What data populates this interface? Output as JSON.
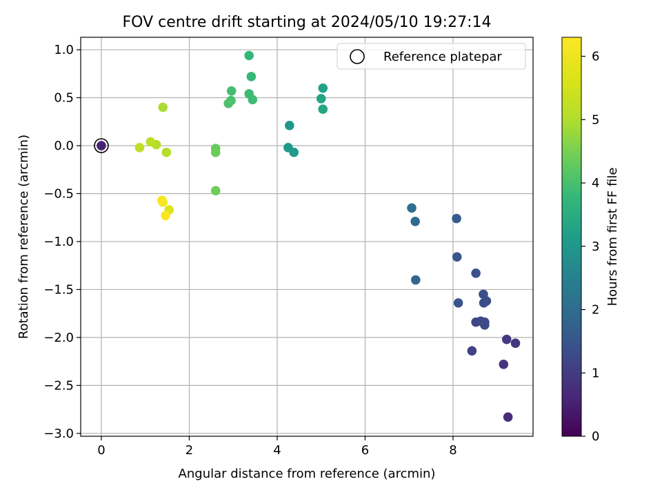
{
  "chart_data": {
    "type": "scatter",
    "title": "FOV centre drift starting at 2024/05/10 19:27:14",
    "xlabel": "Angular distance from reference (arcmin)",
    "ylabel": "Rotation from reference (arcmin)",
    "xlim": [
      -0.47,
      9.82
    ],
    "ylim": [
      -3.03,
      1.13
    ],
    "xticks": [
      0,
      2,
      4,
      6,
      8
    ],
    "xtick_labels": [
      "0",
      "2",
      "4",
      "6",
      "8"
    ],
    "yticks": [
      1.0,
      0.5,
      0.0,
      -0.5,
      -1.0,
      -1.5,
      -2.0,
      -2.5,
      -3.0
    ],
    "ytick_labels": [
      "1.0",
      "0.5",
      "0.0",
      "−0.5",
      "−1.0",
      "−1.5",
      "−2.0",
      "−2.5",
      "−3.0"
    ],
    "grid": true,
    "colormap": "viridis",
    "colorbar": {
      "label": "Hours from first FF file",
      "range": [
        0,
        6.3
      ],
      "ticks": [
        0,
        1,
        2,
        3,
        4,
        5,
        6
      ],
      "tick_labels": [
        "0",
        "1",
        "2",
        "3",
        "4",
        "5",
        "6"
      ]
    },
    "legend": {
      "position": "top-right",
      "entries": [
        {
          "label": "Reference platepar",
          "marker": "open-circle"
        }
      ]
    },
    "reference_point": {
      "x": 0,
      "y": 0
    },
    "points": [
      {
        "x": 0.0,
        "y": 0.0,
        "hours": 0.55
      },
      {
        "x": 9.25,
        "y": -2.83,
        "hours": 0.75
      },
      {
        "x": 9.15,
        "y": -2.28,
        "hours": 0.85
      },
      {
        "x": 9.42,
        "y": -2.06,
        "hours": 0.9
      },
      {
        "x": 9.22,
        "y": -2.02,
        "hours": 0.95
      },
      {
        "x": 8.43,
        "y": -2.14,
        "hours": 1.1
      },
      {
        "x": 8.52,
        "y": -1.84,
        "hours": 1.2
      },
      {
        "x": 8.63,
        "y": -1.83,
        "hours": 1.25
      },
      {
        "x": 8.72,
        "y": -1.84,
        "hours": 1.3
      },
      {
        "x": 8.72,
        "y": -1.87,
        "hours": 1.3
      },
      {
        "x": 8.7,
        "y": -1.64,
        "hours": 1.35
      },
      {
        "x": 8.76,
        "y": -1.62,
        "hours": 1.35
      },
      {
        "x": 8.69,
        "y": -1.55,
        "hours": 1.4
      },
      {
        "x": 8.52,
        "y": -1.33,
        "hours": 1.45
      },
      {
        "x": 8.12,
        "y": -1.64,
        "hours": 1.5
      },
      {
        "x": 8.09,
        "y": -1.16,
        "hours": 1.55
      },
      {
        "x": 8.08,
        "y": -0.76,
        "hours": 1.65
      },
      {
        "x": 7.15,
        "y": -1.4,
        "hours": 1.85
      },
      {
        "x": 7.14,
        "y": -0.79,
        "hours": 1.95
      },
      {
        "x": 7.06,
        "y": -0.65,
        "hours": 2.05
      },
      {
        "x": 4.28,
        "y": 0.21,
        "hours": 3.0
      },
      {
        "x": 4.25,
        "y": -0.02,
        "hours": 3.05
      },
      {
        "x": 4.38,
        "y": -0.07,
        "hours": 3.1
      },
      {
        "x": 5.04,
        "y": 0.6,
        "hours": 3.25
      },
      {
        "x": 5.0,
        "y": 0.49,
        "hours": 3.3
      },
      {
        "x": 5.04,
        "y": 0.38,
        "hours": 3.35
      },
      {
        "x": 3.36,
        "y": 0.94,
        "hours": 3.75
      },
      {
        "x": 3.41,
        "y": 0.72,
        "hours": 3.8
      },
      {
        "x": 3.36,
        "y": 0.54,
        "hours": 3.85
      },
      {
        "x": 3.44,
        "y": 0.48,
        "hours": 3.9
      },
      {
        "x": 2.96,
        "y": 0.57,
        "hours": 3.95
      },
      {
        "x": 2.95,
        "y": 0.47,
        "hours": 4.0
      },
      {
        "x": 2.89,
        "y": 0.44,
        "hours": 4.05
      },
      {
        "x": 2.6,
        "y": -0.03,
        "hours": 4.3
      },
      {
        "x": 2.6,
        "y": -0.07,
        "hours": 4.35
      },
      {
        "x": 2.6,
        "y": -0.47,
        "hours": 4.4
      },
      {
        "x": 1.4,
        "y": 0.4,
        "hours": 4.95
      },
      {
        "x": 1.48,
        "y": -0.07,
        "hours": 5.05
      },
      {
        "x": 1.25,
        "y": 0.01,
        "hours": 5.1
      },
      {
        "x": 1.12,
        "y": 0.04,
        "hours": 5.15
      },
      {
        "x": 0.87,
        "y": -0.02,
        "hours": 5.2
      },
      {
        "x": 1.54,
        "y": -0.67,
        "hours": 5.7
      },
      {
        "x": 1.38,
        "y": -0.57,
        "hours": 6.15
      },
      {
        "x": 1.4,
        "y": -0.59,
        "hours": 6.2
      },
      {
        "x": 1.46,
        "y": -0.73,
        "hours": 6.25
      }
    ]
  }
}
